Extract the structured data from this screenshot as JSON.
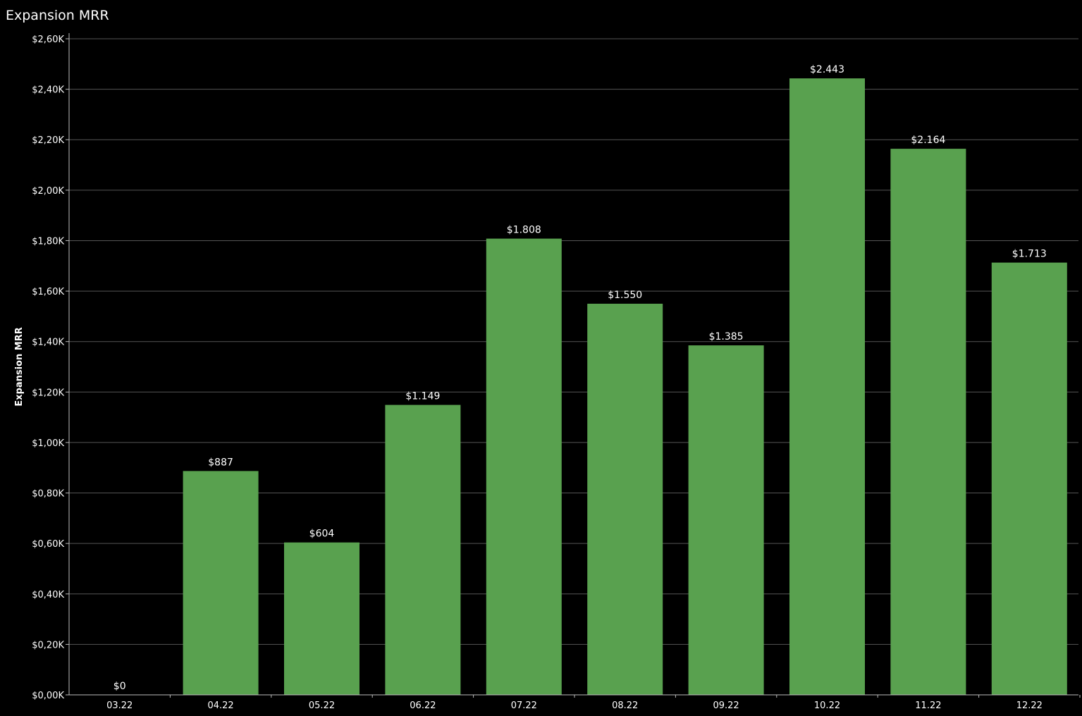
{
  "chart_data": {
    "type": "bar",
    "title": "Expansion MRR",
    "xlabel": "",
    "ylabel": "Expansion MRR",
    "categories": [
      "03.22",
      "04.22",
      "05.22",
      "06.22",
      "07.22",
      "08.22",
      "09.22",
      "10.22",
      "11.22",
      "12.22"
    ],
    "values": [
      0,
      887,
      604,
      1149,
      1808,
      1550,
      1385,
      2443,
      2164,
      1713
    ],
    "value_labels": [
      "$0",
      "$887",
      "$604",
      "$1.149",
      "$1.808",
      "$1.550",
      "$1.385",
      "$2.443",
      "$2.164",
      "$1.713"
    ],
    "ylim": [
      0,
      2600
    ],
    "yticks": [
      0,
      200,
      400,
      600,
      800,
      1000,
      1200,
      1400,
      1600,
      1800,
      2000,
      2200,
      2400,
      2600
    ],
    "ytick_labels": [
      "$0,00K",
      "$0,20K",
      "$0,40K",
      "$0,60K",
      "$0,80K",
      "$1,00K",
      "$1,20K",
      "$1,40K",
      "$1,60K",
      "$1,80K",
      "$2,00K",
      "$2,20K",
      "$2,40K",
      "$2,60K"
    ],
    "grid": true,
    "legend": "none",
    "bar_color": "#59a14f",
    "background_color": "#000000",
    "gridline_color": "#555555"
  }
}
